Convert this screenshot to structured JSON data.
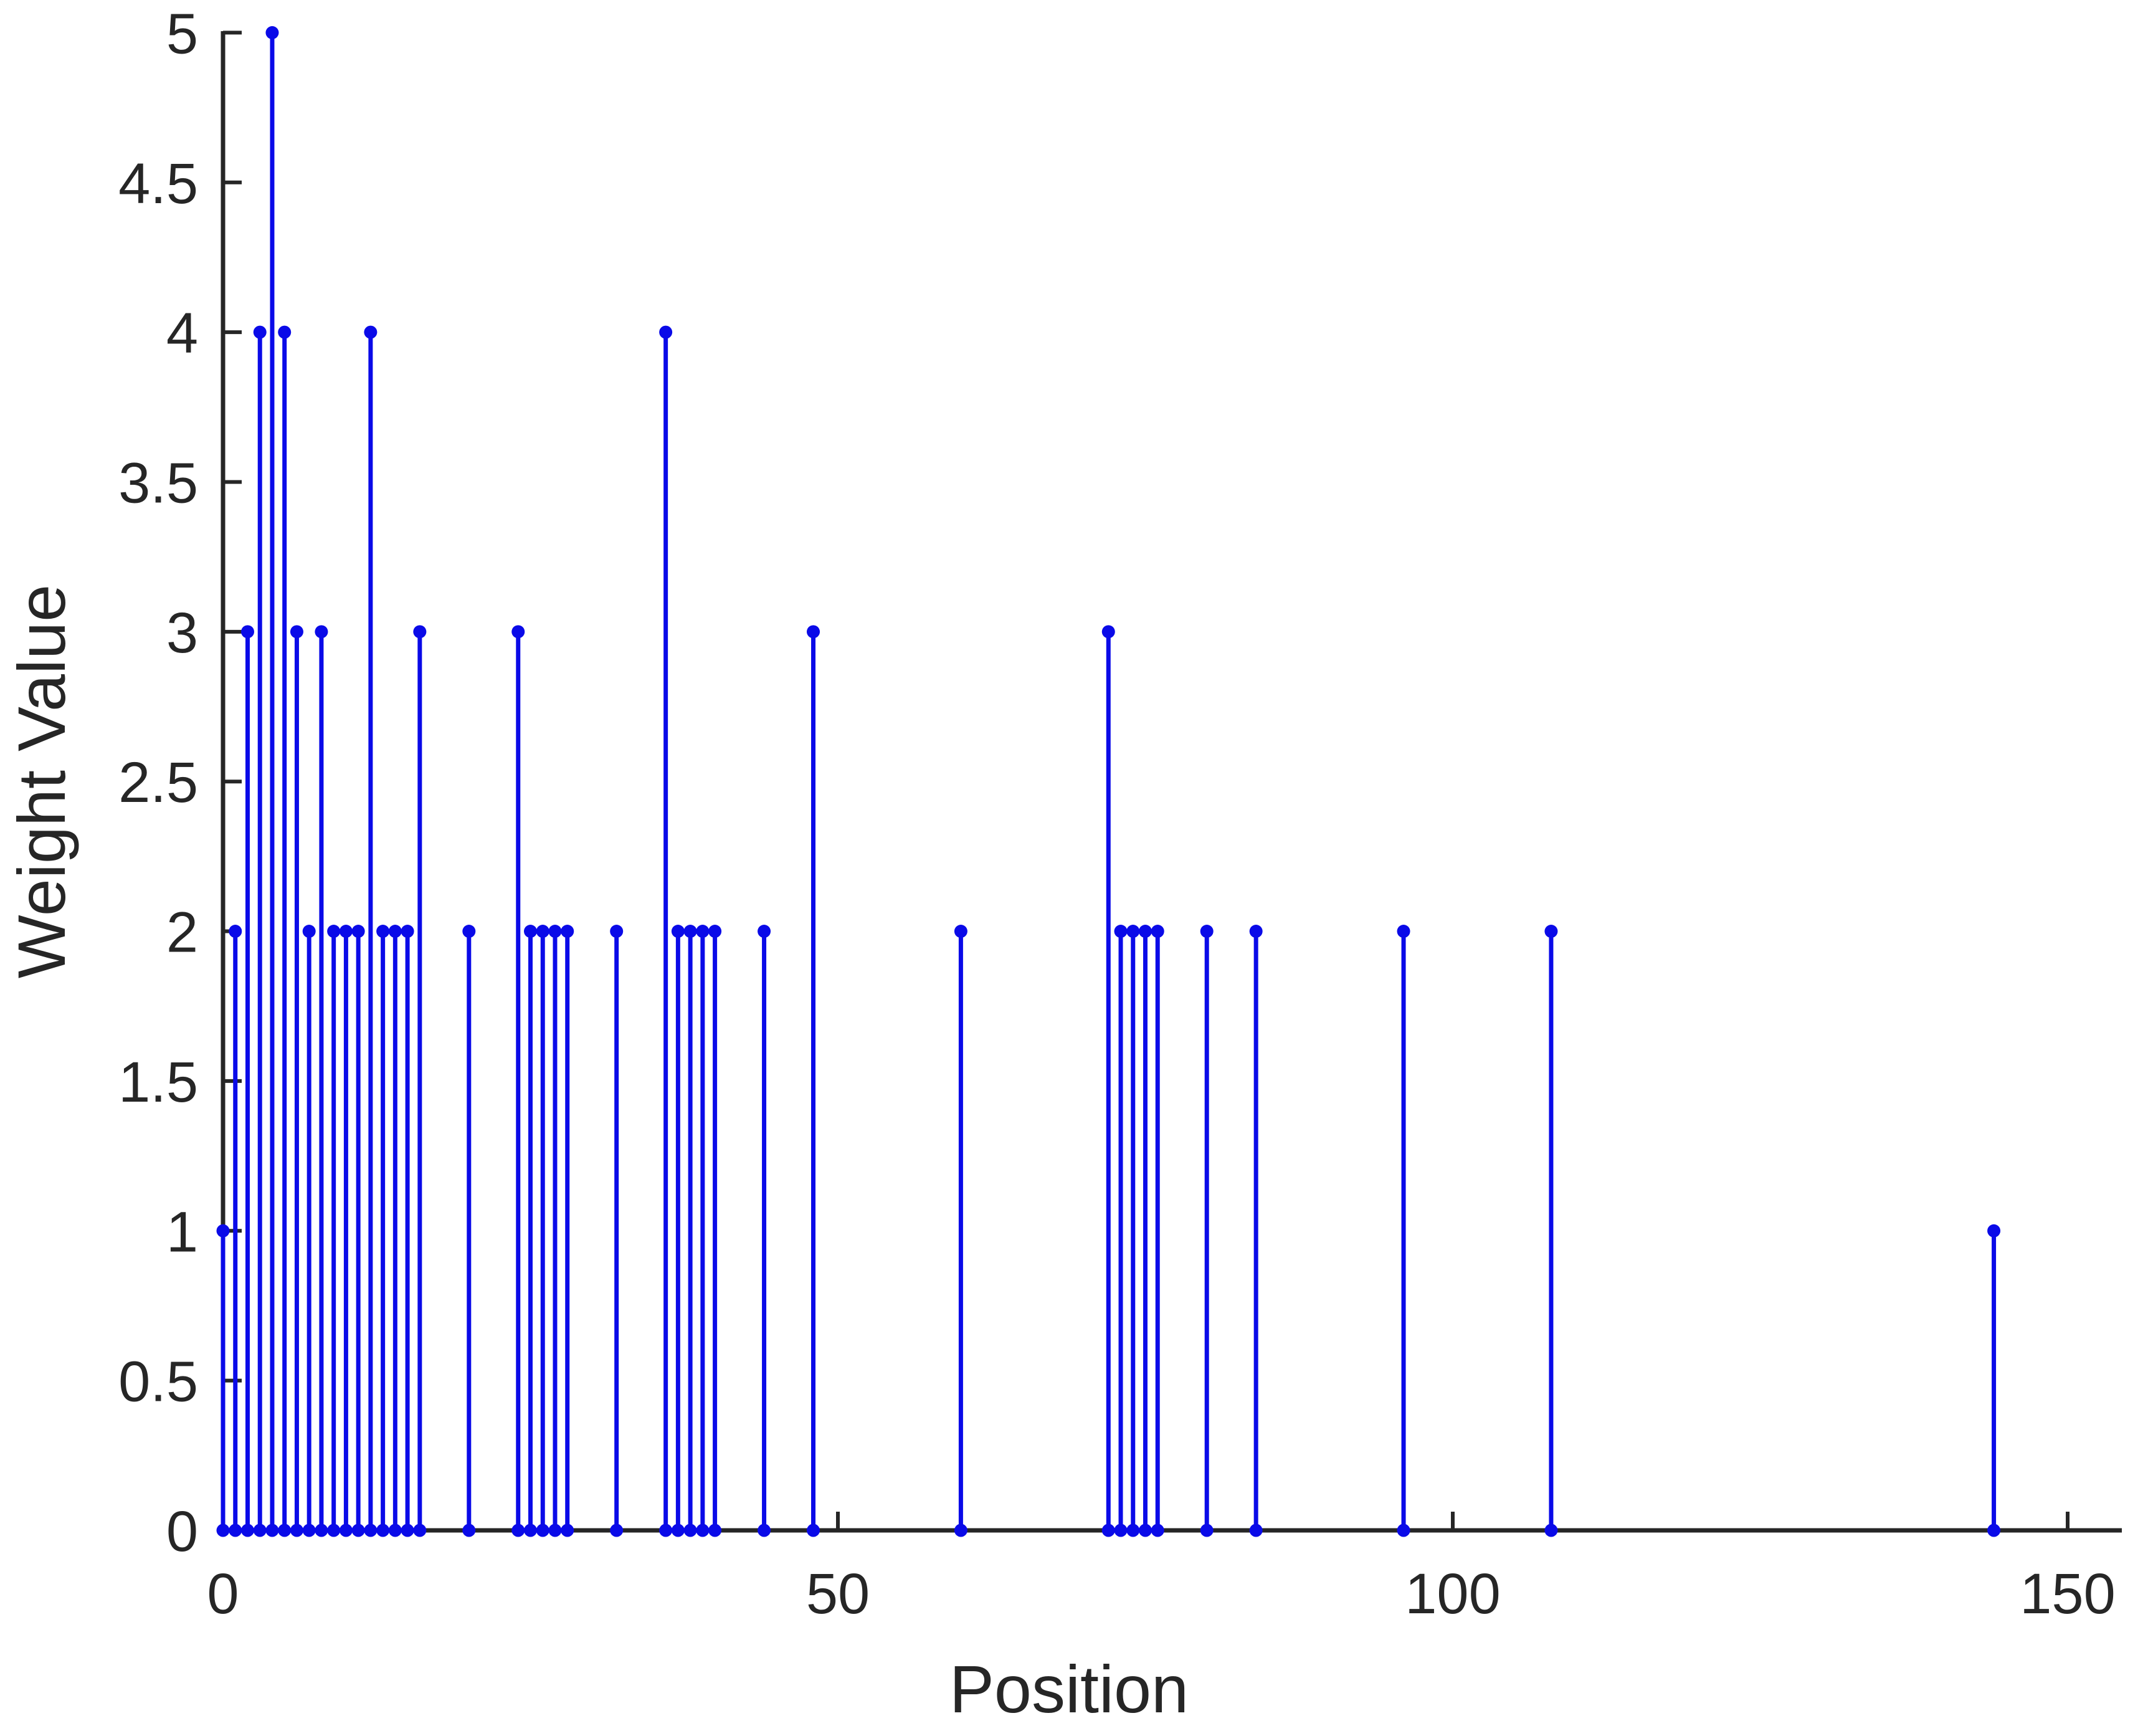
{
  "figure": {
    "background": "#ffffff"
  },
  "chart_data": {
    "type": "stem",
    "title": "",
    "xlabel": "Position",
    "ylabel": "Weight Value",
    "x": [
      0,
      1,
      2,
      3,
      4,
      5,
      6,
      7,
      8,
      9,
      10,
      11,
      12,
      13,
      14,
      15,
      16,
      20,
      24,
      25,
      26,
      27,
      28,
      32,
      36,
      37,
      38,
      39,
      40,
      44,
      48,
      60,
      72,
      73,
      74,
      75,
      76,
      80,
      84,
      96,
      108,
      144
    ],
    "values": [
      1,
      2,
      3,
      4,
      5,
      4,
      3,
      2,
      3,
      2,
      2,
      2,
      4,
      2,
      2,
      2,
      3,
      2,
      3,
      2,
      2,
      2,
      2,
      2,
      4,
      2,
      2,
      2,
      2,
      2,
      3,
      2,
      3,
      2,
      2,
      2,
      2,
      2,
      2,
      2,
      2,
      1
    ],
    "xticks": [
      0,
      50,
      100,
      150
    ],
    "xtick_labels": [
      "0",
      "50",
      "100",
      "150"
    ],
    "yticks": [
      0,
      0.5,
      1,
      1.5,
      2,
      2.5,
      3,
      3.5,
      4,
      4.5,
      5
    ],
    "ytick_labels": [
      "0",
      "0.5",
      "1",
      "1.5",
      "2",
      "2.5",
      "3",
      "3.5",
      "4",
      "4.5",
      "5"
    ],
    "xlim": [
      0,
      154.4
    ],
    "ylim": [
      0,
      5
    ],
    "grid": false,
    "legend": null,
    "marker": "filled-circle",
    "baseline_markers": true,
    "stem_color": "#0a0ae8",
    "axis_color": "#262626",
    "text_color": "#262626"
  }
}
